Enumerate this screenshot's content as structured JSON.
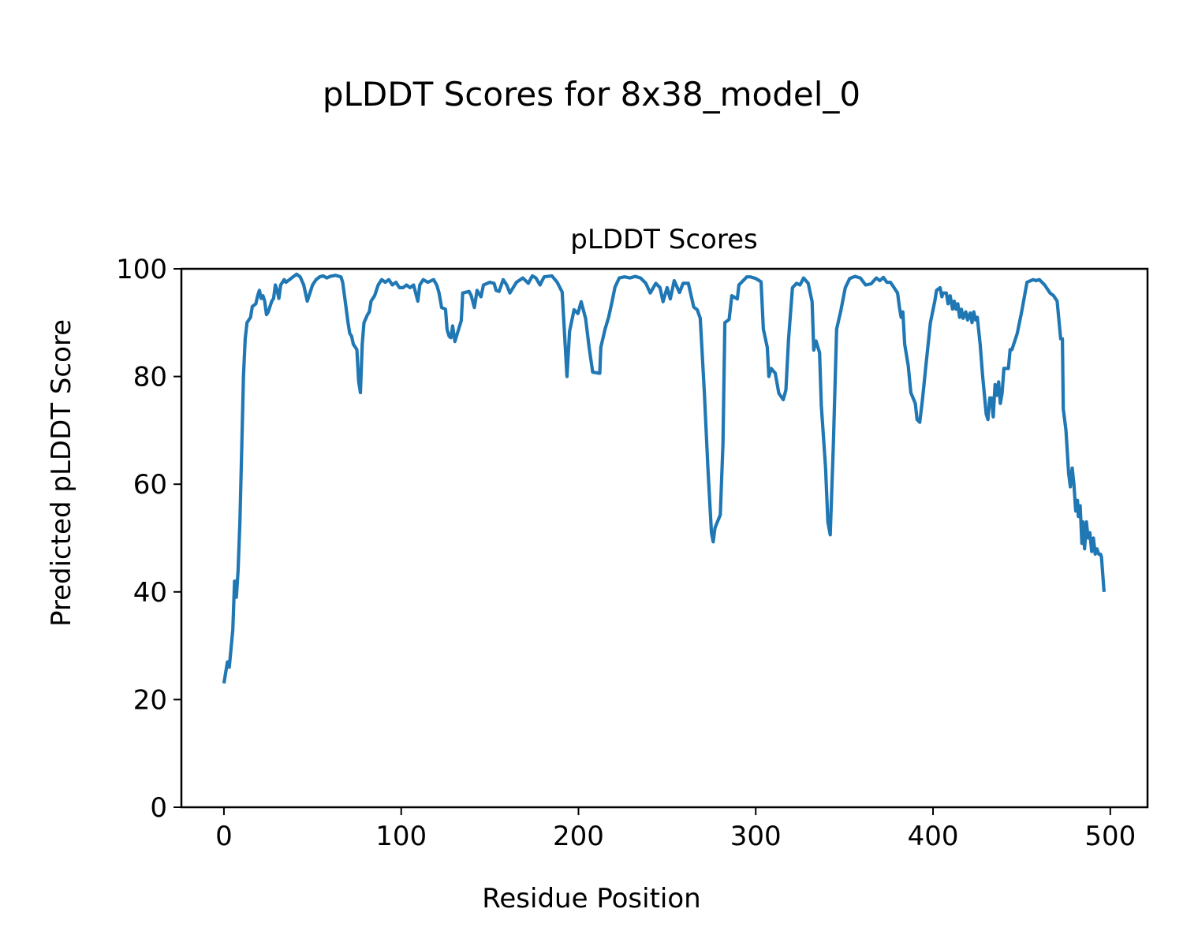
{
  "chart_data": {
    "type": "line",
    "suptitle": "pLDDT Scores for 8x38_model_0",
    "title": "pLDDT Scores",
    "xlabel": "Residue Position",
    "ylabel": "Predicted pLDDT Score",
    "xlim": [
      -24,
      521
    ],
    "ylim": [
      0,
      100
    ],
    "xticks": [
      0,
      100,
      200,
      300,
      400,
      500
    ],
    "xtick_labels": [
      "0",
      "100",
      "200",
      "300",
      "400",
      "500"
    ],
    "yticks": [
      0,
      20,
      40,
      60,
      80,
      100
    ],
    "ytick_labels": [
      "0",
      "20",
      "40",
      "60",
      "80",
      "100"
    ],
    "grid": false,
    "series": [
      {
        "name": "pLDDT",
        "color": "#1f77b4",
        "points": [
          [
            0,
            23
          ],
          [
            2,
            27
          ],
          [
            3,
            26
          ],
          [
            5,
            33
          ],
          [
            6,
            42
          ],
          [
            7,
            39
          ],
          [
            8,
            44
          ],
          [
            9,
            53
          ],
          [
            10,
            66
          ],
          [
            11,
            80
          ],
          [
            12,
            87
          ],
          [
            13,
            90
          ],
          [
            15,
            91
          ],
          [
            16,
            93
          ],
          [
            18,
            93.5
          ],
          [
            19,
            95
          ],
          [
            20,
            96
          ],
          [
            21,
            94.5
          ],
          [
            22,
            95
          ],
          [
            23,
            94
          ],
          [
            24,
            91.5
          ],
          [
            25,
            92
          ],
          [
            27,
            94
          ],
          [
            28,
            94.5
          ],
          [
            29,
            97
          ],
          [
            30,
            96
          ],
          [
            31,
            94.5
          ],
          [
            32,
            97
          ],
          [
            34,
            98
          ],
          [
            35,
            97.5
          ],
          [
            37,
            98
          ],
          [
            39,
            98.5
          ],
          [
            41,
            99
          ],
          [
            43,
            98.5
          ],
          [
            45,
            97
          ],
          [
            47,
            94
          ],
          [
            49,
            96
          ],
          [
            50,
            97
          ],
          [
            52,
            98
          ],
          [
            54,
            98.5
          ],
          [
            56,
            98.7
          ],
          [
            58,
            98.3
          ],
          [
            60,
            98.6
          ],
          [
            63,
            98.8
          ],
          [
            66,
            98.5
          ],
          [
            67,
            97.5
          ],
          [
            68,
            95
          ],
          [
            70,
            90
          ],
          [
            71,
            88
          ],
          [
            72,
            87.5
          ],
          [
            73,
            86
          ],
          [
            75,
            85
          ],
          [
            76,
            79
          ],
          [
            77,
            77
          ],
          [
            78,
            86
          ],
          [
            79,
            90
          ],
          [
            81,
            91.5
          ],
          [
            82,
            92
          ],
          [
            83,
            94
          ],
          [
            85,
            95
          ],
          [
            87,
            97
          ],
          [
            89,
            98
          ],
          [
            91,
            97.5
          ],
          [
            93,
            98
          ],
          [
            95,
            97
          ],
          [
            97,
            97.5
          ],
          [
            99,
            96.5
          ],
          [
            101,
            96.5
          ],
          [
            103,
            97
          ],
          [
            105,
            96.5
          ],
          [
            107,
            97
          ],
          [
            109.4,
            94
          ],
          [
            110.5,
            97
          ],
          [
            112.4,
            98
          ],
          [
            115,
            97.5
          ],
          [
            118.3,
            98
          ],
          [
            120,
            97
          ],
          [
            121.3,
            95.6
          ],
          [
            122.8,
            92.8
          ],
          [
            125,
            92.5
          ],
          [
            125.9,
            88.7
          ],
          [
            127,
            87.5
          ],
          [
            128,
            87.2
          ],
          [
            129,
            89.4
          ],
          [
            130.3,
            86.5
          ],
          [
            133.9,
            90.4
          ],
          [
            134.7,
            95.5
          ],
          [
            138.3,
            95.8
          ],
          [
            139.5,
            95
          ],
          [
            141.3,
            92.8
          ],
          [
            142.8,
            96
          ],
          [
            145,
            94.8
          ],
          [
            146.4,
            97
          ],
          [
            150,
            97.5
          ],
          [
            152.4,
            97.3
          ],
          [
            153.5,
            96
          ],
          [
            155.2,
            95.8
          ],
          [
            157.5,
            98
          ],
          [
            159.5,
            97
          ],
          [
            161.3,
            95.5
          ],
          [
            165,
            97.5
          ],
          [
            168.6,
            98.3
          ],
          [
            171.7,
            97.3
          ],
          [
            174,
            98.7
          ],
          [
            176,
            98.3
          ],
          [
            178.3,
            97
          ],
          [
            180.6,
            98.5
          ],
          [
            185,
            98.7
          ],
          [
            188,
            97.5
          ],
          [
            190.8,
            95.7
          ],
          [
            193.5,
            80
          ],
          [
            195,
            88.4
          ],
          [
            197.5,
            92.4
          ],
          [
            199.7,
            91.7
          ],
          [
            201.5,
            93.9
          ],
          [
            204,
            90.8
          ],
          [
            206,
            85.4
          ],
          [
            208,
            80.8
          ],
          [
            212,
            80.6
          ],
          [
            212.6,
            85.4
          ],
          [
            215,
            88.8
          ],
          [
            217,
            91
          ],
          [
            219,
            94
          ],
          [
            220.6,
            96.6
          ],
          [
            223,
            98.3
          ],
          [
            226,
            98.5
          ],
          [
            229,
            98.3
          ],
          [
            232,
            98.6
          ],
          [
            235,
            98.3
          ],
          [
            238,
            97.3
          ],
          [
            240.5,
            95.5
          ],
          [
            243.6,
            97.3
          ],
          [
            246,
            96.5
          ],
          [
            247.7,
            93.9
          ],
          [
            250,
            96.5
          ],
          [
            251.8,
            94.4
          ],
          [
            254,
            97.8
          ],
          [
            257,
            95.6
          ],
          [
            259,
            97.3
          ],
          [
            262,
            97.3
          ],
          [
            264,
            94.4
          ],
          [
            265,
            92.9
          ],
          [
            267,
            92.4
          ],
          [
            268.7,
            90.8
          ],
          [
            271,
            77
          ],
          [
            273,
            63
          ],
          [
            275,
            51
          ],
          [
            276,
            49.3
          ],
          [
            277,
            51.9
          ],
          [
            280,
            54.3
          ],
          [
            281.5,
            67.5
          ],
          [
            282.6,
            90
          ],
          [
            285,
            90.6
          ],
          [
            286.5,
            95
          ],
          [
            289.6,
            94.4
          ],
          [
            290.5,
            97
          ],
          [
            295,
            98.5
          ],
          [
            297,
            98.5
          ],
          [
            300,
            98.2
          ],
          [
            303,
            97.6
          ],
          [
            304.3,
            88.8
          ],
          [
            306.5,
            85.4
          ],
          [
            307.4,
            80
          ],
          [
            308.7,
            81.5
          ],
          [
            311,
            80.6
          ],
          [
            313,
            76.9
          ],
          [
            315.5,
            75.7
          ],
          [
            317,
            77.5
          ],
          [
            318.5,
            86.8
          ],
          [
            320.7,
            96.5
          ],
          [
            323,
            97.3
          ],
          [
            325,
            97
          ],
          [
            327,
            98.3
          ],
          [
            329.6,
            97.3
          ],
          [
            331.8,
            93.9
          ],
          [
            332.7,
            84.9
          ],
          [
            334,
            86.6
          ],
          [
            336,
            84.4
          ],
          [
            337,
            74.6
          ],
          [
            339.4,
            63
          ],
          [
            340.7,
            53
          ],
          [
            342,
            50.6
          ],
          [
            343.8,
            67.5
          ],
          [
            345.6,
            88.8
          ],
          [
            348,
            92.2
          ],
          [
            350.5,
            96.5
          ],
          [
            353,
            98.2
          ],
          [
            356,
            98.6
          ],
          [
            359,
            98.3
          ],
          [
            362,
            97
          ],
          [
            365,
            97.2
          ],
          [
            368,
            98.3
          ],
          [
            370,
            97.8
          ],
          [
            372,
            98.4
          ],
          [
            374,
            97.5
          ],
          [
            376,
            97.5
          ],
          [
            378,
            96.5
          ],
          [
            380,
            95.5
          ],
          [
            381,
            93
          ],
          [
            382,
            91
          ],
          [
            383,
            92
          ],
          [
            384,
            86
          ],
          [
            386,
            82
          ],
          [
            387.5,
            77
          ],
          [
            390,
            75
          ],
          [
            391,
            72
          ],
          [
            392.5,
            71.5
          ],
          [
            394,
            75.5
          ],
          [
            396,
            82
          ],
          [
            398.5,
            90
          ],
          [
            401,
            94
          ],
          [
            402,
            96
          ],
          [
            404,
            96.5
          ],
          [
            405,
            94.8
          ],
          [
            405.7,
            95.5
          ],
          [
            407.5,
            95.5
          ],
          [
            408.5,
            93.5
          ],
          [
            409.7,
            95
          ],
          [
            411,
            92.5
          ],
          [
            412,
            94
          ],
          [
            413,
            92.5
          ],
          [
            414,
            93.5
          ],
          [
            415,
            91
          ],
          [
            416,
            92.5
          ],
          [
            417,
            90.8
          ],
          [
            418.5,
            92
          ],
          [
            419.5,
            90.5
          ],
          [
            421,
            91.8
          ],
          [
            422,
            90
          ],
          [
            423,
            92
          ],
          [
            424,
            90.5
          ],
          [
            425,
            91
          ],
          [
            426.6,
            86
          ],
          [
            428,
            80
          ],
          [
            430,
            73
          ],
          [
            431,
            72
          ],
          [
            432,
            76
          ],
          [
            433,
            76
          ],
          [
            434,
            72.5
          ],
          [
            435,
            78.5
          ],
          [
            436,
            76.5
          ],
          [
            437,
            79
          ],
          [
            438,
            75
          ],
          [
            439,
            77
          ],
          [
            440,
            81.5
          ],
          [
            442.5,
            81.5
          ],
          [
            443.5,
            85
          ],
          [
            444.5,
            85
          ],
          [
            447.5,
            88
          ],
          [
            450,
            92
          ],
          [
            453,
            97.5
          ],
          [
            456.5,
            98
          ],
          [
            458,
            97.8
          ],
          [
            460,
            98
          ],
          [
            463,
            97
          ],
          [
            466,
            95.5
          ],
          [
            468,
            95
          ],
          [
            470,
            94
          ],
          [
            472,
            87
          ],
          [
            473,
            87
          ],
          [
            473.5,
            74
          ],
          [
            475,
            70
          ],
          [
            476.5,
            62
          ],
          [
            477.5,
            59.5
          ],
          [
            478.5,
            63
          ],
          [
            479.5,
            60
          ],
          [
            480.5,
            55
          ],
          [
            481.5,
            57
          ],
          [
            482,
            54
          ],
          [
            483,
            56
          ],
          [
            484,
            49
          ],
          [
            484.5,
            53
          ],
          [
            485.5,
            48
          ],
          [
            486.5,
            53
          ],
          [
            487.5,
            50
          ],
          [
            488.5,
            51
          ],
          [
            489.5,
            47.5
          ],
          [
            490.5,
            50
          ],
          [
            491.5,
            47
          ],
          [
            492.5,
            48
          ],
          [
            493.5,
            47
          ],
          [
            494.5,
            47
          ],
          [
            495,
            46.5
          ],
          [
            496.5,
            40
          ]
        ]
      }
    ]
  }
}
